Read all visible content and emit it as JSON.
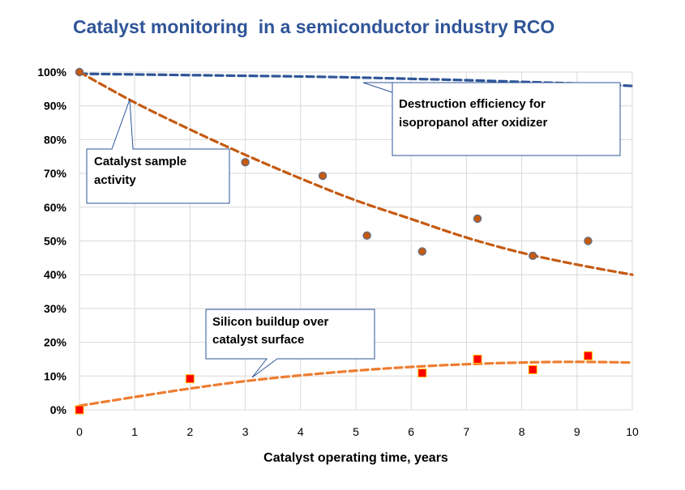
{
  "chart_data": {
    "type": "scatter",
    "title": "Catalyst monitoring  in a semiconductor industry RCO",
    "xlabel": "Catalyst operating time, years",
    "ylabel": "",
    "xlim": [
      0,
      10
    ],
    "ylim": [
      0,
      100
    ],
    "x_ticks": [
      "0",
      "1",
      "2",
      "3",
      "4",
      "5",
      "6",
      "7",
      "8",
      "9",
      "10"
    ],
    "y_ticks": [
      "0%",
      "10%",
      "20%",
      "30%",
      "40%",
      "50%",
      "60%",
      "70%",
      "80%",
      "90%",
      "100%"
    ],
    "grid": true,
    "series": [
      {
        "kind": "trendline",
        "color": "#2f5597",
        "style": "dashed",
        "x": [
          0,
          1,
          2,
          3,
          4,
          5,
          6,
          7,
          8,
          9,
          10
        ],
        "y": [
          99.5,
          99.3,
          99.1,
          98.9,
          98.7,
          98.4,
          98.0,
          97.6,
          97.1,
          96.6,
          95.9
        ]
      },
      {
        "kind": "trendline",
        "color": "#c55a11",
        "style": "dashed",
        "x": [
          0,
          1,
          2,
          3,
          4,
          5,
          6,
          7,
          8,
          9,
          10
        ],
        "y": [
          100,
          91,
          83,
          75.5,
          68.5,
          62,
          56.5,
          51,
          46.5,
          43,
          40
        ]
      },
      {
        "kind": "points",
        "marker": "circle",
        "color": "#c55a11",
        "stroke": "#5a6e8c",
        "x": [
          0,
          3,
          4.4,
          5.2,
          6.2,
          7.2,
          8.2,
          9.2
        ],
        "y": [
          100,
          73.3,
          69.3,
          51.6,
          46.9,
          56.6,
          45.6,
          50.0
        ]
      },
      {
        "kind": "trendline",
        "color": "#ed7d31",
        "style": "dashed",
        "x": [
          0,
          1,
          2,
          3,
          4,
          5,
          6,
          7,
          8,
          9,
          10
        ],
        "y": [
          1.2,
          3.8,
          6.3,
          8.5,
          10.2,
          11.6,
          12.7,
          13.5,
          14.0,
          14.2,
          14.0
        ]
      },
      {
        "kind": "points",
        "marker": "square",
        "color": "#ff0000",
        "stroke": "#ffc000",
        "x": [
          0,
          2,
          6.2,
          7.2,
          8.2,
          9.2
        ],
        "y": [
          0,
          9.2,
          10.9,
          15.0,
          11.9,
          16.0
        ]
      }
    ],
    "annotations": [
      {
        "lines": [
          "Destruction efficiency for",
          "isopropanol after oxidizer"
        ]
      },
      {
        "lines": [
          "Catalyst sample",
          "activity"
        ]
      },
      {
        "lines": [
          "Silicon buildup over",
          "catalyst surface"
        ]
      }
    ]
  }
}
